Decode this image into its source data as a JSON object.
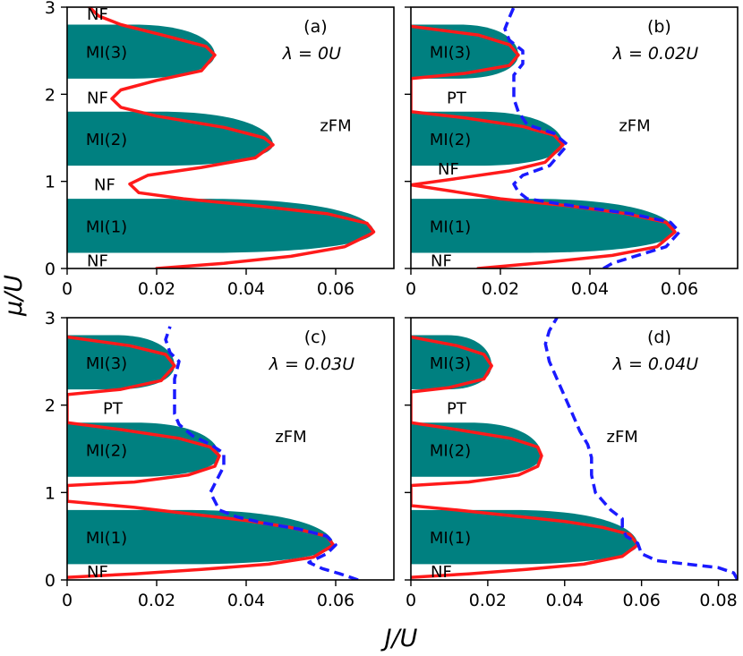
{
  "chart_data": [
    {
      "id": "a",
      "type": "line",
      "label": "(a)",
      "lambda_text": "λ = 0U",
      "xlim": [
        0,
        0.073
      ],
      "ylim": [
        0,
        3
      ],
      "xticks": [
        "0",
        "0.02",
        "0.04",
        "0.06"
      ],
      "xtick_values": [
        0,
        0.02,
        0.04,
        0.06
      ],
      "yticks": [
        "0",
        "1",
        "2",
        "3"
      ],
      "ytick_values": [
        0,
        1,
        2,
        3
      ],
      "show_ytick_labels": true,
      "show_xlabel": false,
      "mi_regions": [
        {
          "label": "MI(1)",
          "mu_low": 0.18,
          "mu_high": 0.8,
          "j_max": 0.0685,
          "mu_tip": 0.42
        },
        {
          "label": "MI(2)",
          "mu_low": 1.18,
          "mu_high": 1.8,
          "j_max": 0.046,
          "mu_tip": 1.42
        },
        {
          "label": "MI(3)",
          "mu_low": 2.18,
          "mu_high": 2.8,
          "j_max": 0.033,
          "mu_tip": 2.45
        }
      ],
      "series": [
        {
          "name": "MI boundary",
          "color": "#ff1a1a",
          "style": "solid",
          "points": [
            [
              0.02,
              0.0
            ],
            [
              0.035,
              0.06
            ],
            [
              0.05,
              0.14
            ],
            [
              0.062,
              0.25
            ],
            [
              0.068,
              0.4
            ],
            [
              0.0685,
              0.42
            ],
            [
              0.067,
              0.52
            ],
            [
              0.058,
              0.63
            ],
            [
              0.042,
              0.72
            ],
            [
              0.026,
              0.8
            ],
            [
              0.016,
              0.87
            ],
            [
              0.014,
              0.97
            ],
            [
              0.018,
              1.07
            ],
            [
              0.03,
              1.16
            ],
            [
              0.042,
              1.27
            ],
            [
              0.046,
              1.42
            ],
            [
              0.044,
              1.5
            ],
            [
              0.035,
              1.62
            ],
            [
              0.02,
              1.75
            ],
            [
              0.012,
              1.85
            ],
            [
              0.01,
              1.95
            ],
            [
              0.012,
              2.05
            ],
            [
              0.02,
              2.16
            ],
            [
              0.03,
              2.27
            ],
            [
              0.033,
              2.45
            ],
            [
              0.031,
              2.55
            ],
            [
              0.022,
              2.67
            ],
            [
              0.012,
              2.8
            ],
            [
              0.007,
              2.9
            ],
            [
              0.005,
              3.0
            ]
          ]
        }
      ],
      "region_labels": [
        {
          "text": "NF",
          "j": 0.005,
          "mu": 0.1
        },
        {
          "text": "NF",
          "j": 0.006,
          "mu": 0.97
        },
        {
          "text": "NF",
          "j": 0.005,
          "mu": 1.97
        },
        {
          "text": "NF",
          "j": 0.004,
          "mu": 2.93
        },
        {
          "text": "zFM",
          "j": 0.06,
          "mu": 1.65
        }
      ]
    },
    {
      "id": "b",
      "type": "line",
      "label": "(b)",
      "lambda_text": "λ = 0.02U",
      "xlim": [
        0,
        0.073
      ],
      "ylim": [
        0,
        3
      ],
      "xticks": [
        "0",
        "0.02",
        "0.04",
        "0.06"
      ],
      "xtick_values": [
        0,
        0.02,
        0.04,
        0.06
      ],
      "yticks": [
        "0",
        "1",
        "2",
        "3"
      ],
      "ytick_values": [
        0,
        1,
        2,
        3
      ],
      "show_ytick_labels": false,
      "show_xlabel": false,
      "mi_regions": [
        {
          "label": "MI(1)",
          "mu_low": 0.18,
          "mu_high": 0.8,
          "j_max": 0.059,
          "mu_tip": 0.42
        },
        {
          "label": "MI(2)",
          "mu_low": 1.18,
          "mu_high": 1.8,
          "j_max": 0.034,
          "mu_tip": 1.42
        },
        {
          "label": "MI(3)",
          "mu_low": 2.18,
          "mu_high": 2.8,
          "j_max": 0.024,
          "mu_tip": 2.45
        }
      ],
      "series": [
        {
          "name": "MI boundary",
          "color": "#ff1a1a",
          "style": "solid",
          "points": [
            [
              0.015,
              0.0
            ],
            [
              0.03,
              0.07
            ],
            [
              0.045,
              0.15
            ],
            [
              0.055,
              0.25
            ],
            [
              0.059,
              0.42
            ],
            [
              0.057,
              0.53
            ],
            [
              0.048,
              0.63
            ],
            [
              0.035,
              0.72
            ],
            [
              0.02,
              0.8
            ],
            [
              0.01,
              0.88
            ],
            [
              0.0,
              0.96
            ],
            [
              0.01,
              1.03
            ],
            [
              0.022,
              1.12
            ],
            [
              0.03,
              1.22
            ],
            [
              0.034,
              1.42
            ],
            [
              0.032,
              1.53
            ],
            [
              0.025,
              1.63
            ],
            [
              0.012,
              1.73
            ],
            [
              0.0,
              1.8
            ],
            [
              0.0,
              2.18
            ],
            [
              0.012,
              2.24
            ],
            [
              0.022,
              2.33
            ],
            [
              0.024,
              2.45
            ],
            [
              0.022,
              2.57
            ],
            [
              0.015,
              2.68
            ],
            [
              0.0,
              2.78
            ]
          ]
        },
        {
          "name": "zFM boundary",
          "color": "#1a1aff",
          "style": "dashed",
          "points": [
            [
              0.043,
              0.0
            ],
            [
              0.045,
              0.06
            ],
            [
              0.05,
              0.14
            ],
            [
              0.057,
              0.25
            ],
            [
              0.06,
              0.42
            ],
            [
              0.058,
              0.53
            ],
            [
              0.049,
              0.63
            ],
            [
              0.036,
              0.72
            ],
            [
              0.026,
              0.8
            ],
            [
              0.024,
              0.88
            ],
            [
              0.023,
              0.97
            ],
            [
              0.025,
              1.07
            ],
            [
              0.031,
              1.18
            ],
            [
              0.035,
              1.42
            ],
            [
              0.032,
              1.55
            ],
            [
              0.026,
              1.65
            ],
            [
              0.024,
              1.8
            ],
            [
              0.023,
              1.95
            ],
            [
              0.023,
              2.1
            ],
            [
              0.023,
              2.22
            ],
            [
              0.025,
              2.35
            ],
            [
              0.025,
              2.5
            ],
            [
              0.022,
              2.62
            ],
            [
              0.021,
              2.75
            ],
            [
              0.022,
              2.88
            ],
            [
              0.023,
              3.0
            ]
          ]
        }
      ],
      "region_labels": [
        {
          "text": "NF",
          "j": 0.005,
          "mu": 0.1
        },
        {
          "text": "NF",
          "j": 0.008,
          "mu": 1.15
        },
        {
          "text": "PT",
          "j": 0.01,
          "mu": 1.97
        },
        {
          "text": "zFM",
          "j": 0.05,
          "mu": 1.65
        }
      ]
    },
    {
      "id": "c",
      "type": "line",
      "label": "(c)",
      "lambda_text": "λ = 0.03U",
      "xlim": [
        0,
        0.073
      ],
      "ylim": [
        0,
        3
      ],
      "xticks": [
        "0",
        "0.02",
        "0.04",
        "0.06"
      ],
      "xtick_values": [
        0,
        0.02,
        0.04,
        0.06
      ],
      "yticks": [
        "0",
        "1",
        "2",
        "3"
      ],
      "ytick_values": [
        0,
        1,
        2,
        3
      ],
      "show_ytick_labels": true,
      "show_xlabel": true,
      "mi_regions": [
        {
          "label": "MI(1)",
          "mu_low": 0.18,
          "mu_high": 0.8,
          "j_max": 0.0595,
          "mu_tip": 0.4
        },
        {
          "label": "MI(2)",
          "mu_low": 1.18,
          "mu_high": 1.8,
          "j_max": 0.034,
          "mu_tip": 1.42
        },
        {
          "label": "MI(3)",
          "mu_low": 2.18,
          "mu_high": 2.8,
          "j_max": 0.024,
          "mu_tip": 2.45
        }
      ],
      "series": [
        {
          "name": "MI boundary",
          "color": "#ff1a1a",
          "style": "solid",
          "points": [
            [
              0.0,
              0.03
            ],
            [
              0.015,
              0.07
            ],
            [
              0.03,
              0.12
            ],
            [
              0.045,
              0.18
            ],
            [
              0.055,
              0.26
            ],
            [
              0.0595,
              0.4
            ],
            [
              0.058,
              0.5
            ],
            [
              0.05,
              0.6
            ],
            [
              0.04,
              0.68
            ],
            [
              0.025,
              0.77
            ],
            [
              0.015,
              0.83
            ],
            [
              0.0,
              0.9
            ],
            [
              0.0,
              1.08
            ],
            [
              0.015,
              1.12
            ],
            [
              0.027,
              1.2
            ],
            [
              0.033,
              1.3
            ],
            [
              0.034,
              1.42
            ],
            [
              0.032,
              1.52
            ],
            [
              0.025,
              1.62
            ],
            [
              0.012,
              1.72
            ],
            [
              0.0,
              1.8
            ],
            [
              0.0,
              2.12
            ],
            [
              0.012,
              2.18
            ],
            [
              0.021,
              2.28
            ],
            [
              0.024,
              2.45
            ],
            [
              0.022,
              2.58
            ],
            [
              0.014,
              2.68
            ],
            [
              0.0,
              2.78
            ]
          ]
        },
        {
          "name": "zFM boundary",
          "color": "#1a1aff",
          "style": "dashed",
          "points": [
            [
              0.065,
              0.0
            ],
            [
              0.061,
              0.07
            ],
            [
              0.057,
              0.13
            ],
            [
              0.054,
              0.2
            ],
            [
              0.058,
              0.3
            ],
            [
              0.06,
              0.4
            ],
            [
              0.058,
              0.5
            ],
            [
              0.052,
              0.58
            ],
            [
              0.044,
              0.65
            ],
            [
              0.038,
              0.72
            ],
            [
              0.034,
              0.8
            ],
            [
              0.033,
              0.9
            ],
            [
              0.032,
              1.0
            ],
            [
              0.033,
              1.1
            ],
            [
              0.035,
              1.3
            ],
            [
              0.035,
              1.45
            ],
            [
              0.032,
              1.55
            ],
            [
              0.028,
              1.65
            ],
            [
              0.025,
              1.78
            ],
            [
              0.024,
              1.9
            ],
            [
              0.024,
              2.1
            ],
            [
              0.024,
              2.3
            ],
            [
              0.025,
              2.5
            ],
            [
              0.023,
              2.6
            ],
            [
              0.022,
              2.75
            ],
            [
              0.023,
              2.9
            ]
          ]
        }
      ],
      "region_labels": [
        {
          "text": "NF",
          "j": 0.005,
          "mu": 0.1
        },
        {
          "text": "PT",
          "j": 0.008,
          "mu": 1.97
        },
        {
          "text": "zFM",
          "j": 0.05,
          "mu": 1.65
        }
      ]
    },
    {
      "id": "d",
      "type": "line",
      "label": "(d)",
      "lambda_text": "λ = 0.04U",
      "xlim": [
        0,
        0.085
      ],
      "ylim": [
        0,
        3
      ],
      "xticks": [
        "0",
        "0.02",
        "0.04",
        "0.06",
        "0.08"
      ],
      "xtick_values": [
        0,
        0.02,
        0.04,
        0.06,
        0.08
      ],
      "yticks": [
        "0",
        "1",
        "2",
        "3"
      ],
      "ytick_values": [
        0,
        1,
        2,
        3
      ],
      "show_ytick_labels": false,
      "show_xlabel": true,
      "mi_regions": [
        {
          "label": "MI(1)",
          "mu_low": 0.18,
          "mu_high": 0.8,
          "j_max": 0.059,
          "mu_tip": 0.4
        },
        {
          "label": "MI(2)",
          "mu_low": 1.18,
          "mu_high": 1.8,
          "j_max": 0.034,
          "mu_tip": 1.42
        },
        {
          "label": "MI(3)",
          "mu_low": 2.18,
          "mu_high": 2.8,
          "j_max": 0.021,
          "mu_tip": 2.45
        }
      ],
      "series": [
        {
          "name": "MI boundary",
          "color": "#ff1a1a",
          "style": "solid",
          "points": [
            [
              0.0,
              0.03
            ],
            [
              0.015,
              0.07
            ],
            [
              0.03,
              0.12
            ],
            [
              0.045,
              0.18
            ],
            [
              0.055,
              0.27
            ],
            [
              0.059,
              0.4
            ],
            [
              0.057,
              0.52
            ],
            [
              0.05,
              0.6
            ],
            [
              0.04,
              0.67
            ],
            [
              0.025,
              0.74
            ],
            [
              0.012,
              0.8
            ],
            [
              0.0,
              0.85
            ],
            [
              0.0,
              1.08
            ],
            [
              0.015,
              1.12
            ],
            [
              0.028,
              1.2
            ],
            [
              0.033,
              1.3
            ],
            [
              0.034,
              1.42
            ],
            [
              0.033,
              1.52
            ],
            [
              0.026,
              1.62
            ],
            [
              0.012,
              1.72
            ],
            [
              0.0,
              1.8
            ],
            [
              0.0,
              2.15
            ],
            [
              0.01,
              2.2
            ],
            [
              0.019,
              2.3
            ],
            [
              0.021,
              2.45
            ],
            [
              0.019,
              2.58
            ],
            [
              0.012,
              2.68
            ],
            [
              0.0,
              2.78
            ]
          ]
        },
        {
          "name": "zFM boundary",
          "color": "#1a1aff",
          "style": "dashed",
          "points": [
            [
              0.085,
              0.0
            ],
            [
              0.084,
              0.08
            ],
            [
              0.08,
              0.14
            ],
            [
              0.072,
              0.18
            ],
            [
              0.064,
              0.22
            ],
            [
              0.06,
              0.3
            ],
            [
              0.059,
              0.42
            ],
            [
              0.056,
              0.5
            ],
            [
              0.055,
              0.6
            ],
            [
              0.055,
              0.7
            ],
            [
              0.052,
              0.8
            ],
            [
              0.05,
              0.9
            ],
            [
              0.048,
              1.0
            ],
            [
              0.047,
              1.2
            ],
            [
              0.047,
              1.4
            ],
            [
              0.046,
              1.55
            ],
            [
              0.044,
              1.7
            ],
            [
              0.042,
              1.9
            ],
            [
              0.04,
              2.1
            ],
            [
              0.038,
              2.3
            ],
            [
              0.036,
              2.5
            ],
            [
              0.035,
              2.7
            ],
            [
              0.036,
              2.85
            ],
            [
              0.038,
              3.0
            ]
          ]
        }
      ],
      "region_labels": [
        {
          "text": "NF",
          "j": 0.005,
          "mu": 0.1
        },
        {
          "text": "PT",
          "j": 0.008,
          "mu": 1.97
        },
        {
          "text": "zFM",
          "j": 0.055,
          "mu": 1.65
        }
      ]
    }
  ],
  "axes": {
    "ylabel": "μ/U",
    "xlabel": "J/U"
  },
  "colors": {
    "mi_fill": "#008080",
    "mi_boundary": "#ff1a1a",
    "zfm_boundary": "#1a1aff"
  }
}
